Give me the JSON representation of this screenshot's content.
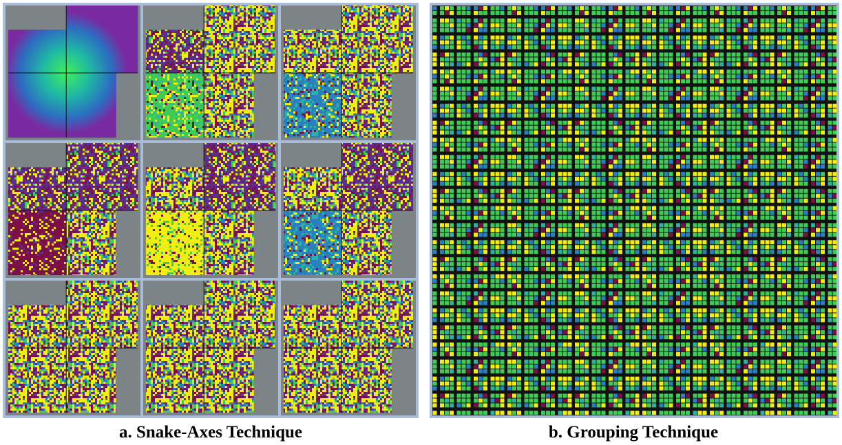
{
  "panels": [
    {
      "caption": "a. Snake-Axes Technique"
    },
    {
      "caption": "b. Grouping Technique"
    }
  ]
}
